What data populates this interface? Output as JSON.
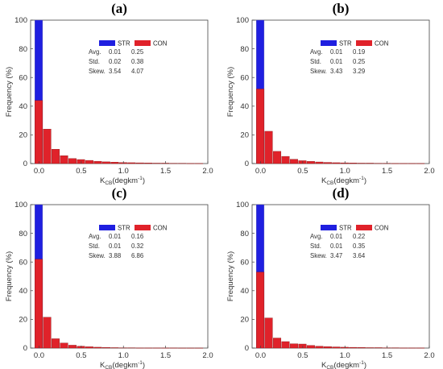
{
  "chart_data": [
    {
      "panel": "(a)",
      "type": "bar",
      "ylabel": "Frequency (%)",
      "xlabel": "K_CB (degkm^-1)",
      "xlim": [
        0.0,
        2.0
      ],
      "ylim": [
        0,
        100
      ],
      "xticks": [
        "0.0",
        "0.5",
        "1.0",
        "1.5",
        "2.0"
      ],
      "yticks": [
        "0",
        "20",
        "40",
        "60",
        "80",
        "100"
      ],
      "bin_width": 0.1,
      "series": [
        {
          "name": "STR",
          "color": "#1f1fe0",
          "bins": [
            {
              "x": 0.0,
              "value": 100
            }
          ]
        },
        {
          "name": "CON",
          "color": "#e0222a",
          "bins": [
            {
              "x": 0.0,
              "value": 44
            },
            {
              "x": 0.1,
              "value": 24
            },
            {
              "x": 0.2,
              "value": 10
            },
            {
              "x": 0.3,
              "value": 5.5
            },
            {
              "x": 0.4,
              "value": 3.5
            },
            {
              "x": 0.5,
              "value": 2.8
            },
            {
              "x": 0.6,
              "value": 2.2
            },
            {
              "x": 0.7,
              "value": 1.6
            },
            {
              "x": 0.8,
              "value": 1.2
            },
            {
              "x": 0.9,
              "value": 1.0
            },
            {
              "x": 1.0,
              "value": 0.7
            },
            {
              "x": 1.1,
              "value": 0.6
            },
            {
              "x": 1.2,
              "value": 0.5
            },
            {
              "x": 1.3,
              "value": 0.4
            },
            {
              "x": 1.4,
              "value": 0.3
            },
            {
              "x": 1.5,
              "value": 0.3
            },
            {
              "x": 1.6,
              "value": 0.2
            },
            {
              "x": 1.7,
              "value": 0.2
            },
            {
              "x": 1.8,
              "value": 0.1
            },
            {
              "x": 1.9,
              "value": 0.1
            }
          ]
        }
      ],
      "legend": {
        "placement": "top-center",
        "entries": [
          "STR",
          "CON"
        ]
      },
      "stats": [
        {
          "label": "Avg.",
          "str": "0.01",
          "con": "0.25"
        },
        {
          "label": "Std.",
          "str": "0.02",
          "con": "0.38"
        },
        {
          "label": "Skew.",
          "str": "3.54",
          "con": "4.07"
        }
      ]
    },
    {
      "panel": "(b)",
      "type": "bar",
      "ylabel": "Frequency (%)",
      "xlabel": "K_CB (degkm^-1)",
      "xlim": [
        0.0,
        2.0
      ],
      "ylim": [
        0,
        100
      ],
      "xticks": [
        "0.0",
        "0.5",
        "1.0",
        "1.5",
        "2.0"
      ],
      "yticks": [
        "0",
        "20",
        "40",
        "60",
        "80",
        "100"
      ],
      "bin_width": 0.1,
      "series": [
        {
          "name": "STR",
          "color": "#1f1fe0",
          "bins": [
            {
              "x": 0.0,
              "value": 100
            }
          ]
        },
        {
          "name": "CON",
          "color": "#e0222a",
          "bins": [
            {
              "x": 0.0,
              "value": 52
            },
            {
              "x": 0.1,
              "value": 22.5
            },
            {
              "x": 0.2,
              "value": 8.5
            },
            {
              "x": 0.3,
              "value": 5
            },
            {
              "x": 0.4,
              "value": 3
            },
            {
              "x": 0.5,
              "value": 2
            },
            {
              "x": 0.6,
              "value": 1.5
            },
            {
              "x": 0.7,
              "value": 1.1
            },
            {
              "x": 0.8,
              "value": 0.8
            },
            {
              "x": 0.9,
              "value": 0.6
            },
            {
              "x": 1.0,
              "value": 0.5
            },
            {
              "x": 1.1,
              "value": 0.4
            },
            {
              "x": 1.2,
              "value": 0.3
            },
            {
              "x": 1.3,
              "value": 0.3
            },
            {
              "x": 1.4,
              "value": 0.2
            },
            {
              "x": 1.5,
              "value": 0.2
            },
            {
              "x": 1.6,
              "value": 0.1
            },
            {
              "x": 1.7,
              "value": 0.1
            },
            {
              "x": 1.8,
              "value": 0.1
            },
            {
              "x": 1.9,
              "value": 0.1
            }
          ]
        }
      ],
      "legend": {
        "placement": "top-center",
        "entries": [
          "STR",
          "CON"
        ]
      },
      "stats": [
        {
          "label": "Avg.",
          "str": "0.01",
          "con": "0.19"
        },
        {
          "label": "Std.",
          "str": "0.01",
          "con": "0.25"
        },
        {
          "label": "Skew.",
          "str": "3.43",
          "con": "3.29"
        }
      ]
    },
    {
      "panel": "(c)",
      "type": "bar",
      "ylabel": "Frequency (%)",
      "xlabel": "K_CB (degkm^-1)",
      "xlim": [
        0.0,
        2.0
      ],
      "ylim": [
        0,
        100
      ],
      "xticks": [
        "0.0",
        "0.5",
        "1.0",
        "1.5",
        "2.0"
      ],
      "yticks": [
        "0",
        "20",
        "40",
        "60",
        "80",
        "100"
      ],
      "bin_width": 0.1,
      "series": [
        {
          "name": "STR",
          "color": "#1f1fe0",
          "bins": [
            {
              "x": 0.0,
              "value": 100
            }
          ]
        },
        {
          "name": "CON",
          "color": "#e0222a",
          "bins": [
            {
              "x": 0.0,
              "value": 62
            },
            {
              "x": 0.1,
              "value": 21.5
            },
            {
              "x": 0.2,
              "value": 6.5
            },
            {
              "x": 0.3,
              "value": 3.5
            },
            {
              "x": 0.4,
              "value": 2
            },
            {
              "x": 0.5,
              "value": 1.3
            },
            {
              "x": 0.6,
              "value": 0.9
            },
            {
              "x": 0.7,
              "value": 0.6
            },
            {
              "x": 0.8,
              "value": 0.4
            },
            {
              "x": 0.9,
              "value": 0.3
            },
            {
              "x": 1.0,
              "value": 0.2
            },
            {
              "x": 1.1,
              "value": 0.2
            },
            {
              "x": 1.2,
              "value": 0.1
            },
            {
              "x": 1.3,
              "value": 0.1
            },
            {
              "x": 1.4,
              "value": 0.1
            },
            {
              "x": 1.5,
              "value": 0.1
            },
            {
              "x": 1.6,
              "value": 0.1
            },
            {
              "x": 1.7,
              "value": 0.05
            },
            {
              "x": 1.8,
              "value": 0.05
            },
            {
              "x": 1.9,
              "value": 0.05
            }
          ]
        }
      ],
      "legend": {
        "placement": "top-center",
        "entries": [
          "STR",
          "CON"
        ]
      },
      "stats": [
        {
          "label": "Avg.",
          "str": "0.01",
          "con": "0.16"
        },
        {
          "label": "Std.",
          "str": "0.01",
          "con": "0.32"
        },
        {
          "label": "Skew.",
          "str": "3.88",
          "con": "6.86"
        }
      ]
    },
    {
      "panel": "(d)",
      "type": "bar",
      "ylabel": "Frequency (%)",
      "xlabel": "K_CB (degkm^-1)",
      "xlim": [
        0.0,
        2.0
      ],
      "ylim": [
        0,
        100
      ],
      "xticks": [
        "0.0",
        "0.5",
        "1.0",
        "1.5",
        "2.0"
      ],
      "yticks": [
        "0",
        "20",
        "40",
        "60",
        "80",
        "100"
      ],
      "bin_width": 0.1,
      "series": [
        {
          "name": "STR",
          "color": "#1f1fe0",
          "bins": [
            {
              "x": 0.0,
              "value": 100
            }
          ]
        },
        {
          "name": "CON",
          "color": "#e0222a",
          "bins": [
            {
              "x": 0.0,
              "value": 53
            },
            {
              "x": 0.1,
              "value": 21
            },
            {
              "x": 0.2,
              "value": 7
            },
            {
              "x": 0.3,
              "value": 4.5
            },
            {
              "x": 0.4,
              "value": 3
            },
            {
              "x": 0.5,
              "value": 2.8
            },
            {
              "x": 0.6,
              "value": 1.8
            },
            {
              "x": 0.7,
              "value": 1.3
            },
            {
              "x": 0.8,
              "value": 1.0
            },
            {
              "x": 0.9,
              "value": 0.8
            },
            {
              "x": 1.0,
              "value": 0.6
            },
            {
              "x": 1.1,
              "value": 0.5
            },
            {
              "x": 1.2,
              "value": 0.4
            },
            {
              "x": 1.3,
              "value": 0.3
            },
            {
              "x": 1.4,
              "value": 0.3
            },
            {
              "x": 1.5,
              "value": 0.2
            },
            {
              "x": 1.6,
              "value": 0.2
            },
            {
              "x": 1.7,
              "value": 0.1
            },
            {
              "x": 1.8,
              "value": 0.1
            },
            {
              "x": 1.9,
              "value": 0.1
            }
          ]
        }
      ],
      "legend": {
        "placement": "top-center",
        "entries": [
          "STR",
          "CON"
        ]
      },
      "stats": [
        {
          "label": "Avg.",
          "str": "0.01",
          "con": "0.22"
        },
        {
          "label": "Std.",
          "str": "0.01",
          "con": "0.35"
        },
        {
          "label": "Skew.",
          "str": "3.47",
          "con": "3.64"
        }
      ]
    }
  ]
}
